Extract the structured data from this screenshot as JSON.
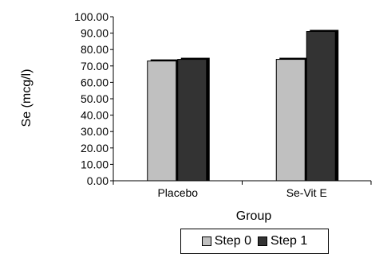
{
  "chart_data": {
    "type": "bar",
    "title": "",
    "xlabel": "Group",
    "ylabel": "Se (mcg/l)",
    "categories": [
      "Placebo",
      "Se-Vit E"
    ],
    "series": [
      {
        "name": "Step 0",
        "values": [
          73,
          74
        ],
        "color": "#c0c0c0"
      },
      {
        "name": "Step 1",
        "values": [
          74,
          91
        ],
        "color": "#333333"
      }
    ],
    "ylim": [
      0,
      100
    ],
    "yticks": [
      "0.00",
      "10.00",
      "20.00",
      "30.00",
      "40.00",
      "50.00",
      "60.00",
      "70.00",
      "80.00",
      "90.00",
      "100.00"
    ],
    "grid": false,
    "legend_position": "bottom"
  }
}
